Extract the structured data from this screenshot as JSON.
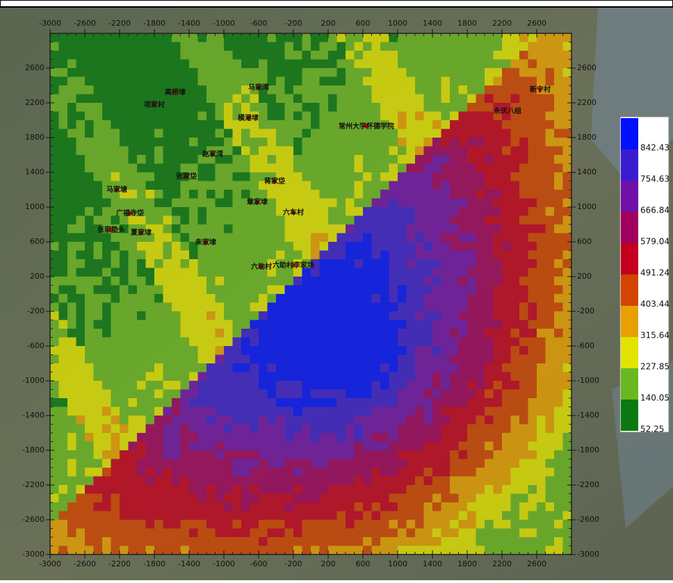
{
  "map": {
    "xticks": [
      -3000,
      -2600,
      -2200,
      -1800,
      -1400,
      -1000,
      -600,
      -200,
      200,
      600,
      1000,
      1400,
      1800,
      2200,
      2600
    ],
    "yticks": [
      2600,
      2200,
      1800,
      1400,
      1000,
      600,
      200,
      -200,
      -600,
      -1000,
      -1400,
      -1800,
      -2200,
      -2600,
      -3000
    ],
    "places": [
      "马家湾",
      "高桥埭",
      "项家村",
      "横港埭",
      "常州大学怀德学院",
      "新宁村",
      "永庆八组",
      "赵家湾",
      "张家垈",
      "马家塘",
      "蒋家垈",
      "章家埭",
      "六车村",
      "广福寺垈",
      "张家垫头",
      "夏家埭",
      "朱家埭",
      "六助村",
      "六助村李家场"
    ]
  },
  "legend": {
    "levels": [
      842.43,
      754.63,
      666.84,
      579.04,
      491.24,
      403.44,
      315.64,
      227.85,
      140.05,
      52.25
    ],
    "colors": [
      "#0010ff",
      "#3a1cd0",
      "#7010a8",
      "#a0005e",
      "#c4001e",
      "#d24400",
      "#e8a000",
      "#e2e400",
      "#6ab820",
      "#0a7a10"
    ]
  }
}
